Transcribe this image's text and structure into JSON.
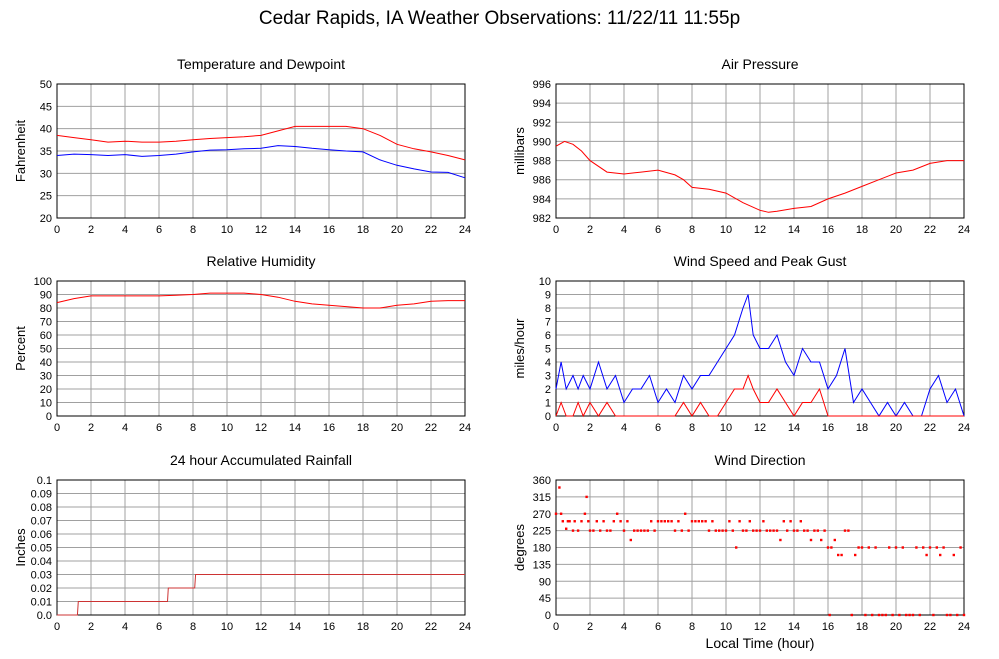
{
  "title": "Cedar Rapids, IA Weather Observations: 11/22/11 11:55p",
  "x_axis": {
    "label": "Local Time (hour)",
    "ticks": [
      0,
      2,
      4,
      6,
      8,
      10,
      12,
      14,
      16,
      18,
      20,
      22,
      24
    ]
  },
  "colors": {
    "red": "#ff0000",
    "blue": "#0000ff",
    "grid": "#a0a0a0"
  },
  "chart_data": [
    {
      "type": "line",
      "title": "Temperature and Dewpoint",
      "ylabel": "Fahrenheit",
      "ylim": [
        20,
        50
      ],
      "yticks": [
        20,
        25,
        30,
        35,
        40,
        45,
        50
      ],
      "xlim": [
        0,
        24
      ],
      "series": [
        {
          "color": "#ff0000",
          "x": [
            0,
            1,
            2,
            3,
            4,
            5,
            6,
            7,
            8,
            9,
            10,
            11,
            12,
            13,
            14,
            15,
            16,
            17,
            18,
            19,
            20,
            21,
            22,
            23,
            24
          ],
          "y": [
            38.5,
            38,
            37.5,
            37,
            37.2,
            37,
            37,
            37.2,
            37.5,
            37.8,
            38,
            38.2,
            38.5,
            39.5,
            40.5,
            40.5,
            40.5,
            40.5,
            40,
            38.5,
            36.5,
            35.5,
            34.8,
            34,
            33
          ]
        },
        {
          "color": "#0000ff",
          "x": [
            0,
            1,
            2,
            3,
            4,
            5,
            6,
            7,
            8,
            9,
            10,
            11,
            12,
            13,
            14,
            15,
            16,
            17,
            18,
            19,
            20,
            21,
            22,
            23,
            24
          ],
          "y": [
            34,
            34.3,
            34.2,
            34,
            34.2,
            33.8,
            34,
            34.3,
            34.8,
            35.2,
            35.3,
            35.5,
            35.6,
            36.2,
            36,
            35.6,
            35.3,
            35,
            34.8,
            33,
            31.8,
            31,
            30.3,
            30.2,
            29
          ]
        }
      ]
    },
    {
      "type": "line",
      "title": "Air Pressure",
      "ylabel": "millibars",
      "ylim": [
        982,
        996
      ],
      "yticks": [
        982,
        984,
        986,
        988,
        990,
        992,
        994,
        996
      ],
      "xlim": [
        0,
        24
      ],
      "series": [
        {
          "color": "#ff0000",
          "x": [
            0,
            0.5,
            1,
            1.5,
            2,
            3,
            4,
            5,
            6,
            7,
            7.5,
            8,
            9,
            10,
            11,
            12,
            12.5,
            13,
            14,
            15,
            16,
            17,
            18,
            19,
            20,
            21,
            22,
            23,
            24
          ],
          "y": [
            989.5,
            990,
            989.7,
            989,
            988,
            986.8,
            986.6,
            986.8,
            987,
            986.5,
            986,
            985.2,
            985,
            984.6,
            983.6,
            982.8,
            982.6,
            982.7,
            983,
            983.2,
            984,
            984.6,
            985.3,
            986,
            986.7,
            987,
            987.7,
            988,
            988
          ]
        }
      ]
    },
    {
      "type": "line",
      "title": "Relative Humidity",
      "ylabel": "Percent",
      "ylim": [
        0,
        100
      ],
      "yticks": [
        0,
        10,
        20,
        30,
        40,
        50,
        60,
        70,
        80,
        90,
        100
      ],
      "xlim": [
        0,
        24
      ],
      "series": [
        {
          "color": "#ff0000",
          "x": [
            0,
            1,
            2,
            3,
            4,
            5,
            6,
            7,
            8,
            9,
            10,
            11,
            12,
            13,
            14,
            15,
            16,
            17,
            18,
            19,
            20,
            21,
            22,
            23,
            24
          ],
          "y": [
            84,
            87,
            89,
            89,
            89,
            89,
            89,
            89.5,
            90,
            91,
            91,
            91,
            90,
            88,
            85,
            83,
            82,
            81,
            80,
            80,
            82,
            83,
            85,
            85.5,
            85.5
          ]
        }
      ]
    },
    {
      "type": "line",
      "title": "Wind Speed and Peak Gust",
      "ylabel": "miles/hour",
      "ylim": [
        0,
        10
      ],
      "yticks": [
        0,
        1,
        2,
        3,
        4,
        5,
        6,
        7,
        8,
        9,
        10
      ],
      "xlim": [
        0,
        24
      ],
      "series": [
        {
          "color": "#0000ff",
          "x": [
            0,
            0.3,
            0.6,
            1,
            1.3,
            1.6,
            2,
            2.5,
            3,
            3.5,
            4,
            4.5,
            5,
            5.5,
            6,
            6.5,
            7,
            7.5,
            8,
            8.5,
            9,
            9.5,
            10,
            10.5,
            11,
            11.3,
            11.6,
            12,
            12.5,
            13,
            13.5,
            14,
            14.5,
            15,
            15.5,
            16,
            16.5,
            17,
            17.5,
            18,
            18.5,
            19,
            19.5,
            20,
            20.5,
            21,
            21.5,
            22,
            22.5,
            23,
            23.5,
            24
          ],
          "y": [
            2,
            4,
            2,
            3,
            2,
            3,
            2,
            4,
            2,
            3,
            1,
            2,
            2,
            3,
            1,
            2,
            1,
            3,
            2,
            3,
            3,
            4,
            5,
            6,
            8,
            9,
            6,
            5,
            5,
            6,
            4,
            3,
            5,
            4,
            4,
            2,
            3,
            5,
            1,
            2,
            1,
            0,
            1,
            0,
            1,
            0,
            0,
            2,
            3,
            1,
            2,
            0
          ]
        },
        {
          "color": "#ff0000",
          "x": [
            0,
            0.3,
            0.6,
            1,
            1.3,
            1.6,
            2,
            2.5,
            3,
            3.5,
            4,
            5,
            6,
            7,
            7.5,
            8,
            8.5,
            9,
            9.5,
            10,
            10.5,
            11,
            11.3,
            11.6,
            12,
            12.5,
            13,
            13.5,
            14,
            14.5,
            15,
            15.5,
            16,
            16.5,
            17,
            18,
            20,
            22,
            24
          ],
          "y": [
            0,
            1,
            0,
            0,
            1,
            0,
            1,
            0,
            1,
            0,
            0,
            0,
            0,
            0,
            1,
            0,
            1,
            0,
            0,
            1,
            2,
            2,
            3,
            2,
            1,
            1,
            2,
            1,
            0,
            1,
            1,
            2,
            0,
            0,
            0,
            0,
            0,
            0,
            0
          ]
        }
      ]
    },
    {
      "type": "line",
      "title": "24 hour Accumulated Rainfall",
      "ylabel": "Inches",
      "ylim": [
        0,
        0.1
      ],
      "yticks": [
        0.0,
        0.01,
        0.02,
        0.03,
        0.04,
        0.05,
        0.06,
        0.07,
        0.08,
        0.09,
        0.1
      ],
      "ytick_labels": [
        "0.0",
        "0.01",
        "0.02",
        "0.03",
        "0.04",
        "0.05",
        "0.06",
        "0.07",
        "0.08",
        "0.09",
        "0.1"
      ],
      "xlim": [
        0,
        24
      ],
      "series": [
        {
          "color": "#cc3333",
          "x": [
            0,
            1.2,
            1.25,
            6.5,
            6.55,
            8.1,
            8.15,
            24
          ],
          "y": [
            0,
            0,
            0.01,
            0.01,
            0.02,
            0.02,
            0.03,
            0.03
          ]
        }
      ]
    },
    {
      "type": "scatter",
      "title": "Wind Direction",
      "ylabel": "degrees",
      "ylim": [
        0,
        360
      ],
      "yticks": [
        0,
        45,
        90,
        135,
        180,
        225,
        270,
        315,
        360
      ],
      "xlim": [
        0,
        24
      ],
      "series": [
        {
          "color": "#ff0000",
          "x": [
            0,
            0.2,
            0.3,
            0.4,
            0.6,
            0.7,
            0.8,
            1.0,
            1.1,
            1.3,
            1.5,
            1.7,
            1.8,
            1.9,
            2.0,
            2.2,
            2.4,
            2.6,
            2.8,
            3.0,
            3.2,
            3.4,
            3.6,
            3.8,
            4.0,
            4.2,
            4.4,
            4.6,
            4.8,
            5.0,
            5.2,
            5.4,
            5.6,
            5.8,
            6.0,
            6.2,
            6.4,
            6.6,
            6.8,
            7.0,
            7.2,
            7.4,
            7.6,
            7.8,
            8.0,
            8.2,
            8.4,
            8.6,
            8.8,
            9.0,
            9.2,
            9.4,
            9.6,
            9.8,
            10.0,
            10.2,
            10.4,
            10.6,
            10.8,
            11.0,
            11.2,
            11.4,
            11.6,
            11.8,
            12.0,
            12.2,
            12.4,
            12.6,
            12.8,
            13.0,
            13.2,
            13.4,
            13.6,
            13.8,
            14.0,
            14.2,
            14.4,
            14.6,
            14.8,
            15.0,
            15.2,
            15.4,
            15.6,
            15.8,
            16.0,
            16.1,
            16.2,
            16.4,
            16.6,
            16.8,
            17.0,
            17.2,
            17.4,
            17.6,
            17.8,
            18.0,
            18.2,
            18.4,
            18.6,
            18.8,
            19.0,
            19.2,
            19.4,
            19.6,
            19.8,
            20.0,
            20.2,
            20.4,
            20.6,
            20.8,
            21.0,
            21.2,
            21.4,
            21.6,
            21.8,
            22.0,
            22.2,
            22.4,
            22.6,
            22.8,
            23.0,
            23.2,
            23.4,
            23.6,
            23.8,
            24.0
          ],
          "y": [
            270,
            340,
            270,
            250,
            230,
            250,
            250,
            225,
            250,
            225,
            250,
            270,
            315,
            250,
            225,
            225,
            250,
            225,
            250,
            225,
            225,
            250,
            270,
            250,
            225,
            250,
            200,
            225,
            225,
            225,
            225,
            225,
            250,
            225,
            250,
            250,
            250,
            250,
            250,
            225,
            250,
            225,
            270,
            225,
            250,
            250,
            250,
            250,
            250,
            225,
            250,
            225,
            225,
            225,
            225,
            250,
            225,
            180,
            250,
            225,
            225,
            250,
            225,
            225,
            225,
            250,
            225,
            225,
            225,
            225,
            200,
            250,
            225,
            250,
            225,
            225,
            250,
            225,
            225,
            200,
            225,
            225,
            200,
            225,
            180,
            0,
            180,
            200,
            160,
            160,
            225,
            225,
            0,
            160,
            180,
            180,
            0,
            180,
            0,
            180,
            0,
            0,
            0,
            180,
            0,
            180,
            0,
            180,
            0,
            0,
            0,
            180,
            0,
            180,
            160,
            180,
            0,
            180,
            160,
            180,
            0,
            0,
            160,
            0,
            180,
            0
          ]
        }
      ]
    }
  ]
}
